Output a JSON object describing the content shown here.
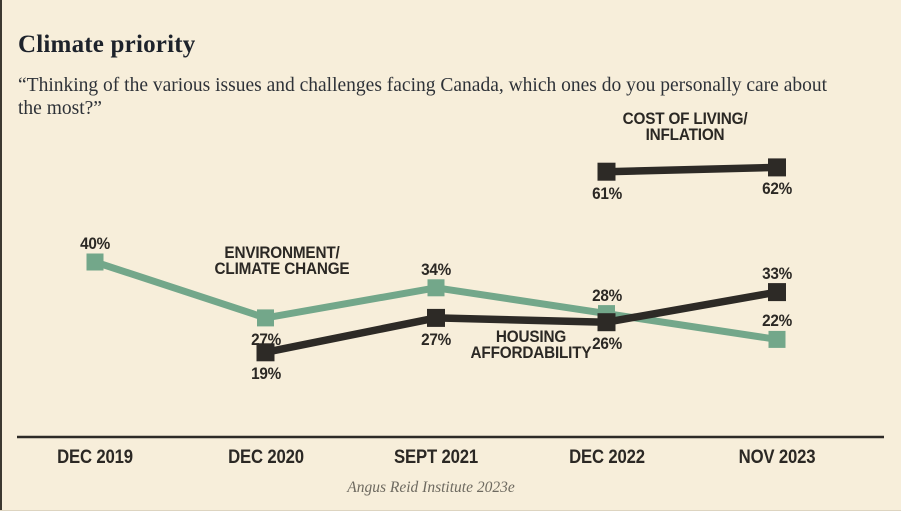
{
  "page": {
    "title": "Climate priority",
    "subtitle": "“Thinking of the various issues and challenges facing Canada, which ones do you personally care about the most?”",
    "source": "Angus Reid Institute 2023e"
  },
  "colors": {
    "background": "#f7eeda",
    "ink": "#2d2a26",
    "green": "#73a78a",
    "source_text": "#6e6a60"
  },
  "chart_data": {
    "type": "line",
    "title": "Climate priority",
    "categories": [
      "DEC 2019",
      "DEC 2020",
      "SEPT 2021",
      "DEC 2022",
      "NOV 2023"
    ],
    "series": [
      {
        "name": "ENVIRONMENT/CLIMATE CHANGE",
        "label_lines": [
          "ENVIRONMENT/",
          "CLIMATE CHANGE"
        ],
        "color_key": "green",
        "values": [
          40,
          27,
          34,
          28,
          22
        ],
        "value_labels": [
          "40%",
          "27%",
          "34%",
          "28%",
          "22%"
        ]
      },
      {
        "name": "HOUSING AFFORDABILITY",
        "label_lines": [
          "HOUSING",
          "AFFORDABILITY"
        ],
        "color_key": "ink",
        "values": [
          null,
          19,
          27,
          26,
          33
        ],
        "value_labels": [
          null,
          "19%",
          "27%",
          "26%",
          "33%"
        ]
      },
      {
        "name": "COST OF LIVING/INFLATION",
        "label_lines": [
          "COST OF LIVING/",
          "INFLATION"
        ],
        "color_key": "ink",
        "values": [
          null,
          null,
          null,
          61,
          62
        ],
        "value_labels": [
          null,
          null,
          null,
          "61%",
          "62%"
        ]
      }
    ],
    "ylim": [
      0,
      100
    ],
    "grid": false,
    "legend": "inline-annotations",
    "xlabel": "",
    "ylabel": ""
  }
}
